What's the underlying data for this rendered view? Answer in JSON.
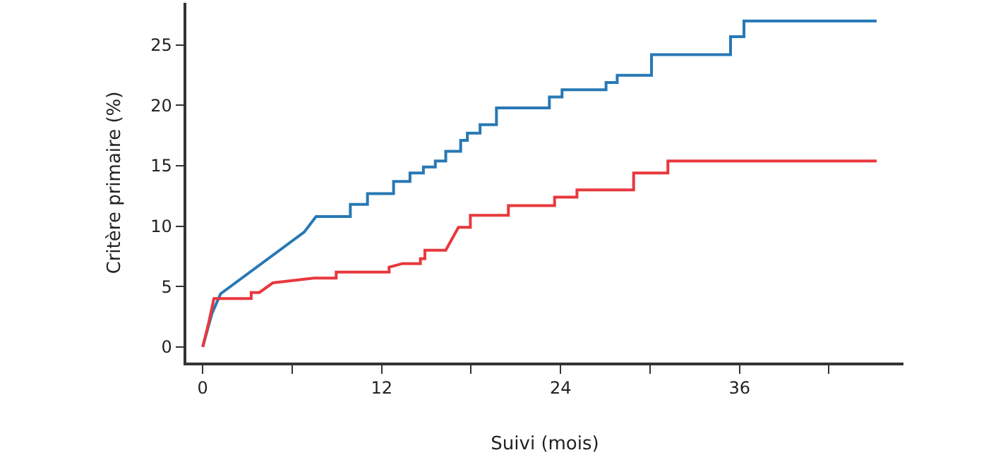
{
  "chart_data": {
    "type": "line",
    "xlabel": "Suivi (mois)",
    "ylabel": "Critère primaire (%)",
    "series": [
      {
        "color": "#2878b5",
        "x": [
          0,
          0.63,
          1.2,
          6.8,
          7.6,
          9.9,
          9.9,
          11.05,
          11.05,
          12.8,
          12.8,
          13.9,
          13.9,
          14.8,
          14.8,
          15.6,
          15.6,
          16.3,
          16.3,
          17.3,
          17.3,
          17.75,
          17.75,
          18.6,
          18.6,
          19.7,
          19.7,
          23.25,
          23.25,
          24.1,
          24.1,
          27.05,
          27.05,
          27.8,
          27.8,
          30.1,
          30.1,
          35.4,
          35.4,
          36.3,
          36.3,
          45.2
        ],
        "values": [
          0,
          2.8,
          4.4,
          9.5,
          10.8,
          10.8,
          11.8,
          11.8,
          12.7,
          12.7,
          13.7,
          13.7,
          14.4,
          14.4,
          14.9,
          14.9,
          15.4,
          15.4,
          16.2,
          16.2,
          17.1,
          17.1,
          17.7,
          17.7,
          18.4,
          18.4,
          19.8,
          19.8,
          20.7,
          20.7,
          21.3,
          21.3,
          21.9,
          21.9,
          22.5,
          22.5,
          24.2,
          24.2,
          25.7,
          25.7,
          27.0,
          27.0
        ]
      },
      {
        "color": "#e8383d",
        "x": [
          0,
          0.4,
          0.75,
          3.25,
          3.25,
          3.8,
          4.7,
          7.45,
          8.95,
          8.95,
          12.5,
          12.5,
          13.4,
          14.6,
          14.6,
          14.9,
          14.9,
          16.3,
          17.15,
          17.95,
          17.95,
          20.5,
          20.5,
          23.6,
          23.6,
          25.1,
          25.1,
          28.9,
          28.9,
          31.2,
          31.2,
          45.2
        ],
        "values": [
          0,
          2.0,
          4.0,
          4.0,
          4.5,
          4.5,
          5.3,
          5.7,
          5.7,
          6.2,
          6.2,
          6.6,
          6.9,
          6.9,
          7.3,
          7.3,
          8.0,
          8.0,
          9.9,
          9.9,
          10.9,
          10.9,
          11.7,
          11.7,
          12.4,
          12.4,
          13.0,
          13.0,
          14.4,
          14.4,
          15.4,
          15.4
        ]
      }
    ],
    "xlim": [
      -1.1,
      47
    ],
    "ylim": [
      -1.3,
      28.5
    ],
    "xticks": [
      0,
      {
        "value": 6,
        "label": null
      },
      12,
      {
        "value": 18,
        "label": null
      },
      24,
      {
        "value": 30,
        "label": null
      },
      36,
      {
        "value": 42,
        "label": null
      }
    ],
    "yticks": [
      0,
      5,
      10,
      15,
      20,
      25
    ],
    "marker": "none",
    "line_style": "solid"
  }
}
